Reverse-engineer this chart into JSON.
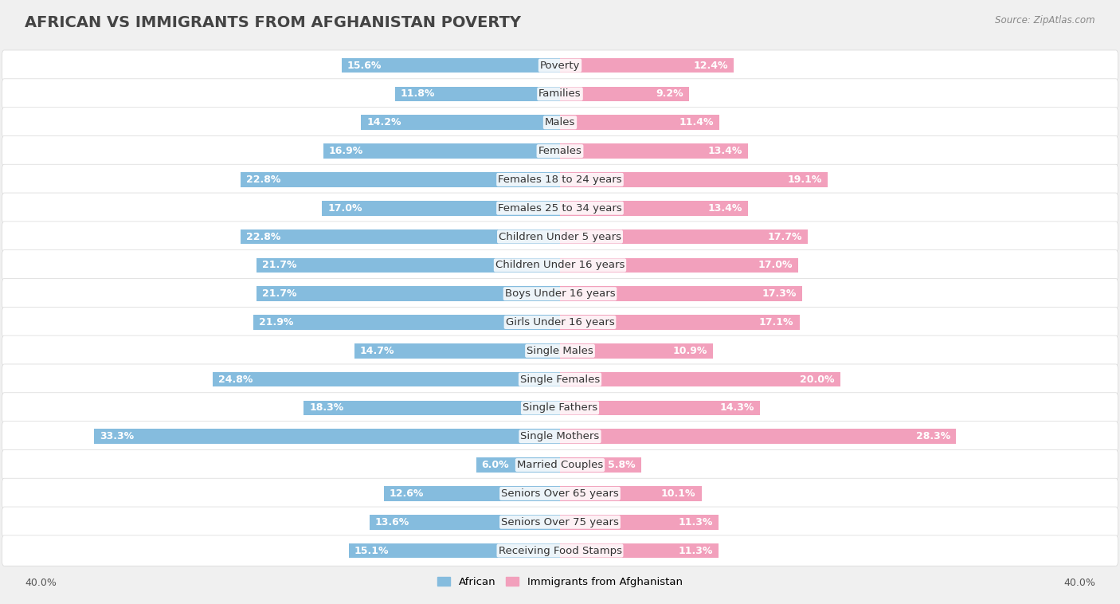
{
  "title": "AFRICAN VS IMMIGRANTS FROM AFGHANISTAN POVERTY",
  "source": "Source: ZipAtlas.com",
  "categories": [
    "Poverty",
    "Families",
    "Males",
    "Females",
    "Females 18 to 24 years",
    "Females 25 to 34 years",
    "Children Under 5 years",
    "Children Under 16 years",
    "Boys Under 16 years",
    "Girls Under 16 years",
    "Single Males",
    "Single Females",
    "Single Fathers",
    "Single Mothers",
    "Married Couples",
    "Seniors Over 65 years",
    "Seniors Over 75 years",
    "Receiving Food Stamps"
  ],
  "african_values": [
    15.6,
    11.8,
    14.2,
    16.9,
    22.8,
    17.0,
    22.8,
    21.7,
    21.7,
    21.9,
    14.7,
    24.8,
    18.3,
    33.3,
    6.0,
    12.6,
    13.6,
    15.1
  ],
  "afghan_values": [
    12.4,
    9.2,
    11.4,
    13.4,
    19.1,
    13.4,
    17.7,
    17.0,
    17.3,
    17.1,
    10.9,
    20.0,
    14.3,
    28.3,
    5.8,
    10.1,
    11.3,
    11.3
  ],
  "african_color": "#85BCDE",
  "afghan_color": "#F2A0BC",
  "background_color": "#f0f0f0",
  "row_bg": "#ffffff",
  "row_border": "#d8d8d8",
  "axis_max": 40.0,
  "legend_african": "African",
  "legend_afghan": "Immigrants from Afghanistan",
  "title_fontsize": 14,
  "label_fontsize": 9.5,
  "value_fontsize": 9
}
